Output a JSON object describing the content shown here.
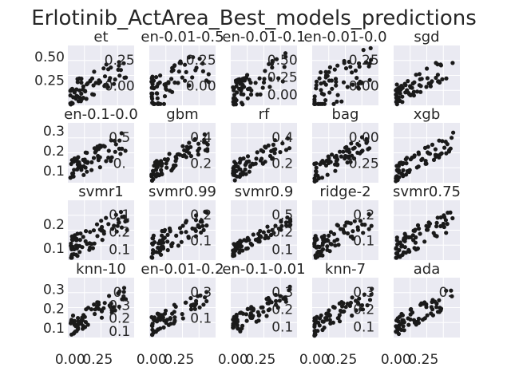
{
  "chart_data": {
    "type": "scatter",
    "title": "Erlotinib_ActArea_Best_models_predictions",
    "grid": true,
    "marker_color": "#1a1a1a",
    "background_color": "#eaeaf2",
    "subplots": [
      {
        "name": "et",
        "xlim": [
          -0.02,
          0.58
        ],
        "ylim": [
          -0.02,
          0.62
        ],
        "xticks": [],
        "xtick_labels": [],
        "yticks": [
          0.25,
          0.5
        ],
        "ytick_labels": [
          "0.25",
          "0.50"
        ],
        "overlay_labels": [
          "0.25",
          "0.00"
        ],
        "seed": 11,
        "spread": 0.28,
        "ymax": 0.6
      },
      {
        "name": "en-0.01-0.5",
        "xlim": [
          -0.02,
          0.58
        ],
        "ylim": [
          -0.02,
          0.42
        ],
        "xticks": [],
        "xtick_labels": [],
        "yticks": [],
        "ytick_labels": [],
        "overlay_labels": [
          "0.25",
          "0.00"
        ],
        "seed": 23,
        "spread": 0.3,
        "ymax": 0.4
      },
      {
        "name": "en-0.01-0.1",
        "xlim": [
          -0.02,
          0.58
        ],
        "ylim": [
          -0.02,
          0.62
        ],
        "xticks": [],
        "xtick_labels": [],
        "yticks": [],
        "ytick_labels": [],
        "overlay_labels": [
          "0.50",
          "0.25",
          "0.00"
        ],
        "seed": 37,
        "spread": 0.3,
        "ymax": 0.6
      },
      {
        "name": "en-0.01-0.0",
        "xlim": [
          -0.02,
          0.58
        ],
        "ylim": [
          -0.02,
          0.42
        ],
        "xticks": [],
        "xtick_labels": [],
        "yticks": [],
        "ytick_labels": [],
        "overlay_labels": [
          "0.25",
          "0.00"
        ],
        "seed": 41,
        "spread": 0.3,
        "ymax": 0.4
      },
      {
        "name": "sgd",
        "xlim": [
          -0.02,
          0.58
        ],
        "ylim": [
          -0.02,
          0.62
        ],
        "xticks": [],
        "xtick_labels": [],
        "yticks": [],
        "ytick_labels": [],
        "overlay_labels": [],
        "seed": 53,
        "spread": 0.25,
        "ymax": 0.6
      },
      {
        "name": "en-0.1-0.0",
        "xlim": [
          -0.02,
          0.58
        ],
        "ylim": [
          0.04,
          0.34
        ],
        "xticks": [],
        "xtick_labels": [],
        "yticks": [
          0.1,
          0.2,
          0.3
        ],
        "ytick_labels": [
          "0.1",
          "0.2",
          "0.3"
        ],
        "overlay_labels": [
          "0.5",
          "0."
        ],
        "seed": 61,
        "spread": 0.12,
        "ymax": 0.32
      },
      {
        "name": "gbm",
        "xlim": [
          -0.02,
          0.58
        ],
        "ylim": [
          0.04,
          0.42
        ],
        "xticks": [],
        "xtick_labels": [],
        "yticks": [],
        "ytick_labels": [],
        "overlay_labels": [
          "0.4",
          "0.2"
        ],
        "seed": 71,
        "spread": 0.12,
        "ymax": 0.4
      },
      {
        "name": "rf",
        "xlim": [
          -0.02,
          0.58
        ],
        "ylim": [
          0.04,
          0.42
        ],
        "xticks": [],
        "xtick_labels": [],
        "yticks": [],
        "ytick_labels": [],
        "overlay_labels": [
          "0.4",
          "0.2"
        ],
        "seed": 79,
        "spread": 0.12,
        "ymax": 0.4
      },
      {
        "name": "bag",
        "xlim": [
          -0.02,
          0.58
        ],
        "ylim": [
          -0.02,
          0.42
        ],
        "xticks": [],
        "xtick_labels": [],
        "yticks": [],
        "ytick_labels": [],
        "overlay_labels": [
          "0.00",
          "0.25"
        ],
        "seed": 83,
        "spread": 0.15,
        "ymax": 0.4
      },
      {
        "name": "xgb",
        "xlim": [
          -0.02,
          0.58
        ],
        "ylim": [
          0.04,
          0.42
        ],
        "xticks": [],
        "xtick_labels": [],
        "yticks": [],
        "ytick_labels": [],
        "overlay_labels": [],
        "seed": 97,
        "spread": 0.12,
        "ymax": 0.4
      },
      {
        "name": "svmr1",
        "xlim": [
          -0.02,
          0.58
        ],
        "ylim": [
          0.05,
          0.3
        ],
        "xticks": [],
        "xtick_labels": [],
        "yticks": [
          0.1,
          0.2
        ],
        "ytick_labels": [
          "0.1",
          "0.2"
        ],
        "overlay_labels": [
          "0.1",
          "0.2",
          "0.1"
        ],
        "seed": 101,
        "spread": 0.1,
        "ymax": 0.28
      },
      {
        "name": "svmr0.99",
        "xlim": [
          -0.02,
          0.58
        ],
        "ylim": [
          0.05,
          0.3
        ],
        "xticks": [],
        "xtick_labels": [],
        "yticks": [],
        "ytick_labels": [],
        "overlay_labels": [
          "0.2",
          "0.1"
        ],
        "seed": 109,
        "spread": 0.1,
        "ymax": 0.28
      },
      {
        "name": "svmr0.9",
        "xlim": [
          -0.02,
          0.58
        ],
        "ylim": [
          0.05,
          0.55
        ],
        "xticks": [],
        "xtick_labels": [],
        "yticks": [],
        "ytick_labels": [],
        "overlay_labels": [
          "0.5",
          "0.2",
          "0.1"
        ],
        "seed": 113,
        "spread": 0.1,
        "ymax": 0.5
      },
      {
        "name": "ridge-2",
        "xlim": [
          -0.02,
          0.58
        ],
        "ylim": [
          0.05,
          0.3
        ],
        "xticks": [],
        "xtick_labels": [],
        "yticks": [],
        "ytick_labels": [],
        "overlay_labels": [
          "0.2",
          "0.1"
        ],
        "seed": 127,
        "spread": 0.1,
        "ymax": 0.28
      },
      {
        "name": "svmr0.75",
        "xlim": [
          -0.02,
          0.58
        ],
        "ylim": [
          0.05,
          0.3
        ],
        "xticks": [],
        "xtick_labels": [],
        "yticks": [],
        "ytick_labels": [],
        "overlay_labels": [],
        "seed": 131,
        "spread": 0.1,
        "ymax": 0.28
      },
      {
        "name": "knn-10",
        "xlim": [
          -0.02,
          0.58
        ],
        "ylim": [
          0.05,
          0.36
        ],
        "xticks": [
          0.0,
          0.25
        ],
        "xtick_labels": [
          "0.00",
          "0.25"
        ],
        "yticks": [
          0.1,
          0.2,
          0.3
        ],
        "ytick_labels": [
          "0.1",
          "0.2",
          "0.3"
        ],
        "overlay_labels": [
          "0.",
          "0.3",
          "0.2",
          "0.1"
        ],
        "seed": 137,
        "spread": 0.1,
        "ymax": 0.34
      },
      {
        "name": "en-0.01-0.2",
        "xlim": [
          -0.02,
          0.58
        ],
        "ylim": [
          0.05,
          0.36
        ],
        "xticks": [
          0.0,
          0.25
        ],
        "xtick_labels": [
          "0.00",
          "0.25"
        ],
        "yticks": [],
        "ytick_labels": [],
        "overlay_labels": [
          "0.3",
          "0.1"
        ],
        "seed": 149,
        "spread": 0.1,
        "ymax": 0.34
      },
      {
        "name": "en-0.1-0.01",
        "xlim": [
          -0.02,
          0.58
        ],
        "ylim": [
          0.05,
          0.36
        ],
        "xticks": [
          0.0,
          0.25
        ],
        "xtick_labels": [
          "0.00",
          "0.25"
        ],
        "yticks": [],
        "ytick_labels": [],
        "overlay_labels": [
          "0.3",
          "0.2",
          "0.1"
        ],
        "seed": 151,
        "spread": 0.1,
        "ymax": 0.34
      },
      {
        "name": "knn-7",
        "xlim": [
          -0.02,
          0.58
        ],
        "ylim": [
          0.05,
          0.36
        ],
        "xticks": [
          0.0,
          0.25
        ],
        "xtick_labels": [
          "0.00",
          "0.25"
        ],
        "yticks": [],
        "ytick_labels": [],
        "overlay_labels": [
          "0.3",
          "0.2",
          "0.1"
        ],
        "seed": 157,
        "spread": 0.1,
        "ymax": 0.34
      },
      {
        "name": "ada",
        "xlim": [
          -0.02,
          0.58
        ],
        "ylim": [
          0.05,
          0.36
        ],
        "xticks": [
          0.0,
          0.25
        ],
        "xtick_labels": [
          "0.00",
          "0.25"
        ],
        "yticks": [],
        "ytick_labels": [],
        "overlay_labels": [
          "0."
        ],
        "seed": 163,
        "spread": 0.1,
        "ymax": 0.34
      }
    ]
  }
}
